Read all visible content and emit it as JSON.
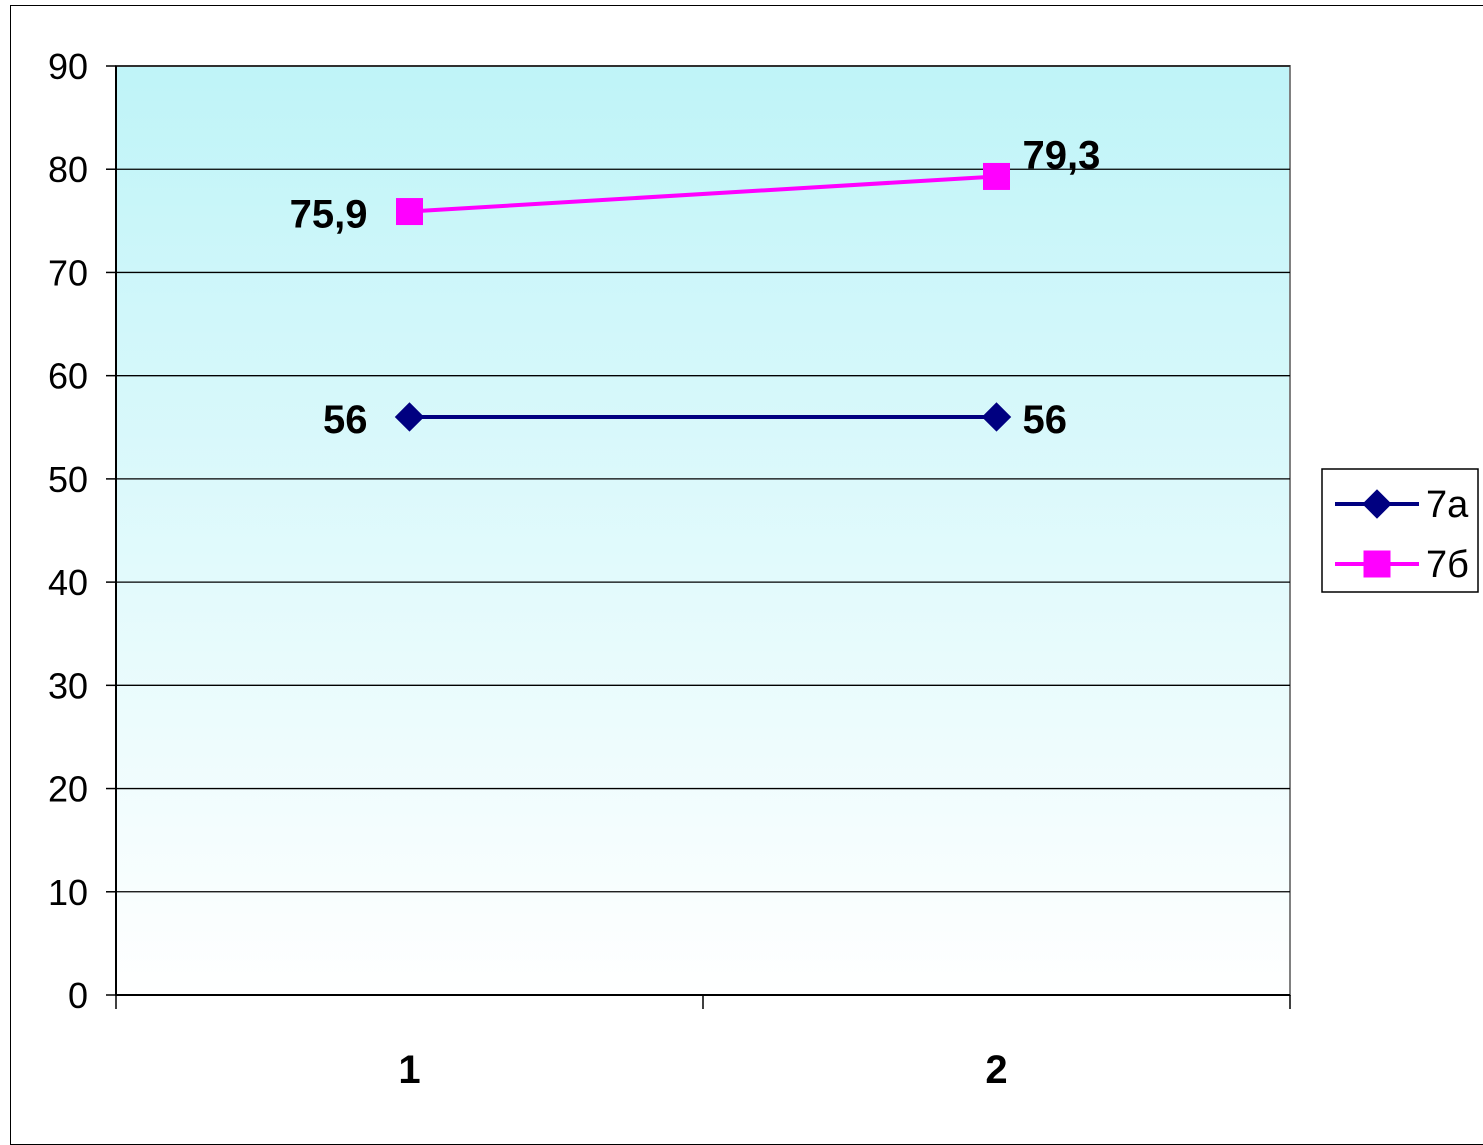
{
  "chart_data": {
    "type": "line",
    "title": "",
    "xlabel": "",
    "ylabel": "",
    "categories": [
      "1",
      "2"
    ],
    "ylim": [
      0,
      90
    ],
    "yticks": [
      0,
      10,
      20,
      30,
      40,
      50,
      60,
      70,
      80,
      90
    ],
    "grid": true,
    "legend_position": "right",
    "plot_background": "gradient #bff4f8 to #ffffff",
    "series": [
      {
        "name": "7а",
        "values": [
          56,
          56
        ],
        "data_labels": [
          "56",
          "56"
        ],
        "color": "#000080",
        "marker": "diamond"
      },
      {
        "name": "7б",
        "values": [
          75.9,
          79.3
        ],
        "data_labels": [
          "75,9",
          "79,3"
        ],
        "color": "#ff00ff",
        "marker": "square"
      }
    ]
  }
}
